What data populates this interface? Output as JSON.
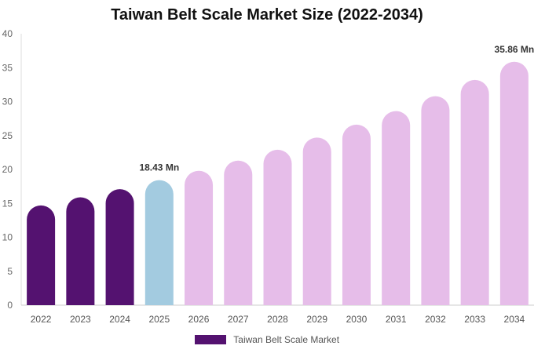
{
  "chart_data": {
    "type": "bar",
    "title": "Taiwan Belt Scale Market Size (2022-2034)",
    "categories": [
      "2022",
      "2023",
      "2024",
      "2025",
      "2026",
      "2027",
      "2028",
      "2029",
      "2030",
      "2031",
      "2032",
      "2033",
      "2034"
    ],
    "series": [
      {
        "name": "Taiwan Belt Scale Market",
        "values": [
          14.7,
          15.9,
          17.1,
          18.43,
          19.8,
          21.3,
          22.9,
          24.7,
          26.6,
          28.6,
          30.8,
          33.2,
          35.86
        ]
      }
    ],
    "ylim": [
      0,
      40
    ],
    "yticks": [
      0,
      5,
      10,
      15,
      20,
      25,
      30,
      35,
      40
    ],
    "grid": false,
    "legend_position": "bottom",
    "data_labels": [
      {
        "index": 3,
        "text": "18.43 Mn"
      },
      {
        "index": 12,
        "text": "35.86 Mn"
      }
    ],
    "bar_colors": {
      "historical": "#541270",
      "current": "#a3cbe0",
      "forecast": "#e6bde9"
    },
    "historical_count": 3,
    "current_index": 3
  }
}
